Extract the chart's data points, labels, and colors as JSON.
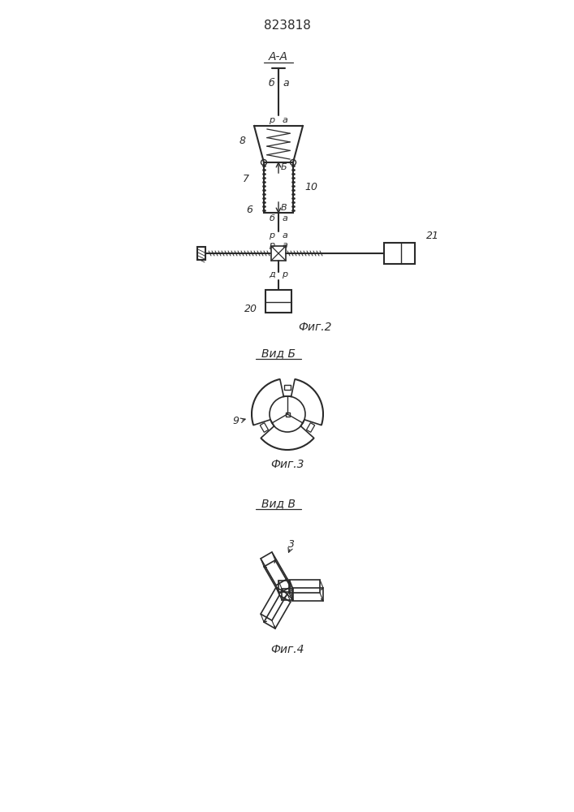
{
  "patent_number": "823818",
  "bg_color": "#ffffff",
  "line_color": "#2a2a2a",
  "fig2_label": "Фиг.2",
  "fig3_label": "Фиг.3",
  "fig4_label": "Фиг.4",
  "vid_b_label": "Вид Б",
  "vid_v_label": "Вид В",
  "aa_label": "А-А"
}
